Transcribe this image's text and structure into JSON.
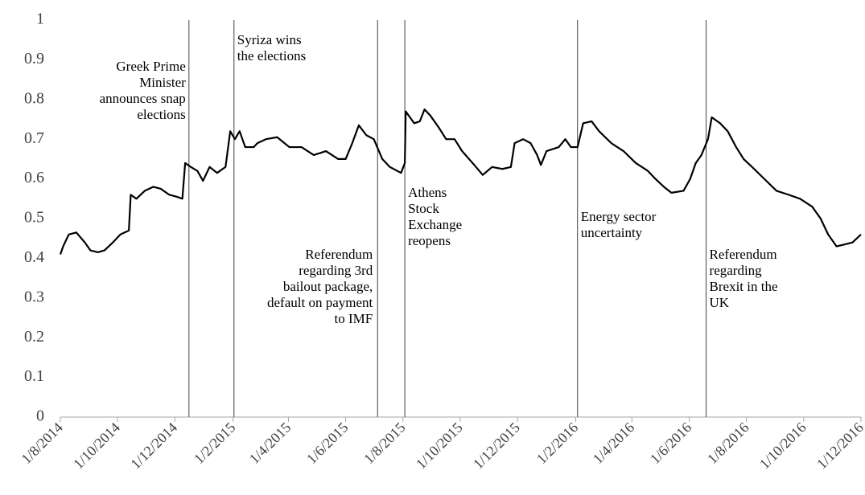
{
  "chart_data": {
    "type": "line",
    "x": [
      "1/8/2014",
      "4/8/2014",
      "10/8/2014",
      "18/8/2014",
      "27/8/2014",
      "2/9/2014",
      "10/9/2014",
      "17/9/2014",
      "26/9/2014",
      "4/10/2014",
      "13/10/2014",
      "15/10/2014",
      "21/10/2014",
      "30/10/2014",
      "8/11/2014",
      "16/11/2014",
      "25/11/2014",
      "3/12/2014",
      "9/12/2014",
      "12/12/2014",
      "18/12/2014",
      "25/12/2014",
      "31/12/2014",
      "7/1/2015",
      "15/1/2015",
      "24/1/2015",
      "29/1/2015",
      "3/2/2015",
      "8/2/2015",
      "14/2/2015",
      "23/2/2015",
      "27/2/2015",
      "8/3/2015",
      "20/3/2015",
      "2/4/2015",
      "15/4/2015",
      "28/4/2015",
      "11/5/2015",
      "24/5/2015",
      "1/6/2015",
      "8/6/2015",
      "15/6/2015",
      "23/6/2015",
      "1/7/2015",
      "10/7/2015",
      "18/7/2015",
      "30/7/2015",
      "3/8/2015",
      "4/8/2015",
      "13/8/2015",
      "19/8/2015",
      "24/8/2015",
      "30/8/2015",
      "8/9/2015",
      "16/9/2015",
      "25/9/2015",
      "3/10/2015",
      "16/10/2015",
      "25/10/2015",
      "4/11/2015",
      "15/11/2015",
      "24/11/2015",
      "28/11/2015",
      "7/12/2015",
      "15/12/2015",
      "22/12/2015",
      "26/12/2015",
      "1/1/2016",
      "14/1/2016",
      "21/1/2016",
      "27/1/2016",
      "3/2/2016",
      "9/2/2016",
      "18/2/2016",
      "26/2/2016",
      "10/3/2016",
      "23/3/2016",
      "5/4/2016",
      "18/4/2016",
      "26/4/2016",
      "5/5/2016",
      "13/5/2016",
      "26/5/2016",
      "2/6/2016",
      "8/6/2016",
      "14/6/2016",
      "21/6/2016",
      "25/6/2016",
      "4/7/2016",
      "12/7/2016",
      "21/7/2016",
      "29/7/2016",
      "7/8/2016",
      "20/8/2016",
      "2/9/2016",
      "15/9/2016",
      "27/9/2016",
      "10/10/2016",
      "19/10/2016",
      "27/10/2016",
      "5/11/2016",
      "14/11/2016",
      "22/11/2016",
      "1/12/2016"
    ],
    "values": [
      0.41,
      0.43,
      0.46,
      0.465,
      0.44,
      0.42,
      0.415,
      0.42,
      0.44,
      0.46,
      0.47,
      0.56,
      0.55,
      0.57,
      0.58,
      0.575,
      0.56,
      0.555,
      0.55,
      0.64,
      0.63,
      0.62,
      0.595,
      0.63,
      0.615,
      0.63,
      0.72,
      0.7,
      0.72,
      0.68,
      0.68,
      0.69,
      0.7,
      0.705,
      0.68,
      0.68,
      0.66,
      0.67,
      0.65,
      0.65,
      0.69,
      0.735,
      0.71,
      0.7,
      0.65,
      0.63,
      0.615,
      0.64,
      0.77,
      0.74,
      0.745,
      0.775,
      0.76,
      0.73,
      0.7,
      0.7,
      0.67,
      0.635,
      0.61,
      0.63,
      0.625,
      0.63,
      0.69,
      0.7,
      0.69,
      0.66,
      0.635,
      0.67,
      0.68,
      0.7,
      0.68,
      0.68,
      0.74,
      0.745,
      0.72,
      0.69,
      0.67,
      0.64,
      0.62,
      0.6,
      0.58,
      0.565,
      0.57,
      0.6,
      0.64,
      0.66,
      0.7,
      0.755,
      0.74,
      0.72,
      0.68,
      0.65,
      0.63,
      0.6,
      0.57,
      0.56,
      0.55,
      0.53,
      0.5,
      0.46,
      0.43,
      0.435,
      0.44,
      0.46
    ],
    "color": "#000000",
    "xlim": [
      "1/8/2014",
      "1/12/2016"
    ],
    "xticks": [
      "1/8/2014",
      "1/10/2014",
      "1/12/2014",
      "1/2/2015",
      "1/4/2015",
      "1/6/2015",
      "1/8/2015",
      "1/10/2015",
      "1/12/2015",
      "1/2/2016",
      "1/4/2016",
      "1/6/2016",
      "1/8/2016",
      "1/10/2016",
      "1/12/2016"
    ],
    "ylim": [
      0,
      1
    ],
    "yticks": [
      0,
      0.1,
      0.2,
      0.3,
      0.4,
      0.5,
      0.6,
      0.7,
      0.8,
      0.9,
      1
    ],
    "events": [
      {
        "x": "16/12/2014",
        "text": [
          "Greek Prime",
          "Minister",
          "announces snap",
          "elections"
        ]
      },
      {
        "x": "2/2/2015",
        "text": [
          "Syriza wins",
          "the elections"
        ]
      },
      {
        "x": "5/7/2015",
        "text": [
          "Referendum",
          "regarding 3rd",
          "bailout package,",
          "default on payment",
          "to IMF"
        ]
      },
      {
        "x": "3/8/2015",
        "text": [
          "Athens",
          "Stock",
          "Exchange",
          "reopens"
        ]
      },
      {
        "x": "3/2/2016",
        "text": [
          "Energy sector",
          "uncertainty"
        ]
      },
      {
        "x": "19/6/2016",
        "text": [
          "Referendum",
          "regarding",
          "Brexit in the",
          "UK"
        ]
      }
    ]
  }
}
